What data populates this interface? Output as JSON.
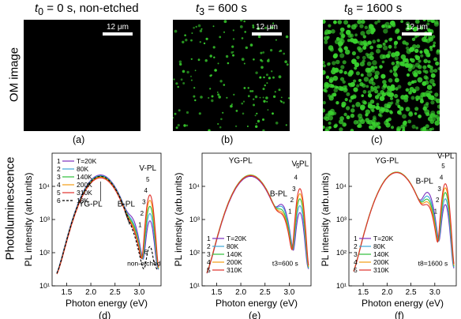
{
  "columns": [
    {
      "heading": "t0 = 0 s, non-etched",
      "sym": "t",
      "sub": "0",
      "rest": " = 0 s, non-etched",
      "scale": "12 μm",
      "panel": "(a)",
      "density": 0
    },
    {
      "heading": "t3 = 600 s",
      "sym": "t",
      "sub": "3",
      "rest": " = 600 s",
      "scale": "12 μm",
      "panel": "(b)",
      "density": 160
    },
    {
      "heading": "t8 = 1600 s",
      "sym": "t",
      "sub": "8",
      "rest": " = 1600 s",
      "scale": "12 μm",
      "panel": "(c)",
      "density": 520
    }
  ],
  "row_labels": {
    "om": "OM image",
    "pl": "Photoluminescence"
  },
  "colors": {
    "T20": "#7b2fbe",
    "T80": "#3aa7d8",
    "T140": "#2fbf3a",
    "T200": "#f39c12",
    "T310": "#e0302a",
    "T18": "#000000",
    "dots": "#39d12e"
  },
  "chart_data": [
    {
      "type": "line",
      "panel": "(d)",
      "xlabel": "Photon energy (eV)",
      "ylabel": "PL intensity (arb.units)",
      "xlim": [
        1.2,
        3.45
      ],
      "ylim": [
        10,
        100000
      ],
      "yscale": "log",
      "xticks": [
        "1.5",
        "2.0",
        "2.5",
        "3.0"
      ],
      "yticks": [
        "10¹",
        "10²",
        "10³",
        "10⁴"
      ],
      "annotations": [
        "YG-PL",
        "B-PL",
        "V-PL",
        "non-etched"
      ],
      "legend": [
        "1 — T=20K",
        "2 — 80K",
        "3 — 140K",
        "4 — 200K",
        "5 — 310K",
        "6 - - 18K"
      ],
      "series": [
        {
          "name": "T=20K",
          "color": "#7b2fbe",
          "peak": 22000,
          "b": 700,
          "v": 900
        },
        {
          "name": "80K",
          "color": "#3aa7d8",
          "peak": 21000,
          "b": 500,
          "v": 1500
        },
        {
          "name": "140K",
          "color": "#2fbf3a",
          "peak": 20000,
          "b": 400,
          "v": 2500
        },
        {
          "name": "200K",
          "color": "#f39c12",
          "peak": 19000,
          "b": 320,
          "v": 3800
        },
        {
          "name": "310K",
          "color": "#e0302a",
          "peak": 18000,
          "b": 260,
          "v": 5500
        },
        {
          "name": "18K",
          "color": "#000000",
          "peak": 20000,
          "b": 120,
          "v": 140,
          "dashed": true
        }
      ]
    },
    {
      "type": "line",
      "panel": "(e)",
      "xlabel": "Photon energy (eV)",
      "ylabel": "PL intensity (arb.units)",
      "xlim": [
        1.2,
        3.45
      ],
      "ylim": [
        10,
        100000
      ],
      "yscale": "log",
      "xticks": [
        "1.5",
        "2.0",
        "2.5",
        "3.0"
      ],
      "yticks": [
        "10¹",
        "10²",
        "10³",
        "10⁴"
      ],
      "annotations": [
        "YG-PL",
        "B-PL",
        "V-PL",
        "t3=600 s"
      ],
      "legend": [
        "1 — T=20K",
        "2 — 80K",
        "3 — 140K",
        "4 — 200K",
        "5 — 310K"
      ],
      "series": [
        {
          "name": "T=20K",
          "color": "#7b2fbe",
          "peak": 20000,
          "b": 2400,
          "v": 1600
        },
        {
          "name": "80K",
          "color": "#3aa7d8",
          "peak": 21000,
          "b": 2000,
          "v": 2600
        },
        {
          "name": "140K",
          "color": "#2fbf3a",
          "peak": 22000,
          "b": 1500,
          "v": 4200
        },
        {
          "name": "200K",
          "color": "#f39c12",
          "peak": 21500,
          "b": 1200,
          "v": 6000
        },
        {
          "name": "310K",
          "color": "#e0302a",
          "peak": 21000,
          "b": 1000,
          "v": 8500
        }
      ]
    },
    {
      "type": "line",
      "panel": "(f)",
      "xlabel": "Photon energy (eV)",
      "ylabel": "PL intensity (arb.units)",
      "xlim": [
        1.2,
        3.45
      ],
      "ylim": [
        10,
        100000
      ],
      "yscale": "log",
      "xticks": [
        "1.5",
        "2.0",
        "2.5",
        "3.0"
      ],
      "yticks": [
        "10¹",
        "10²",
        "10³",
        "10⁴"
      ],
      "annotations": [
        "YG-PL",
        "B-PL",
        "V-PL",
        "t8=1600 s"
      ],
      "legend": [
        "1 — T=20K",
        "2 — 80K",
        "3 — 140K",
        "4 — 200K",
        "5 — 310K"
      ],
      "series": [
        {
          "name": "T=20K",
          "color": "#7b2fbe",
          "peak": 26000,
          "b": 6000,
          "v": 2800
        },
        {
          "name": "80K",
          "color": "#3aa7d8",
          "peak": 26500,
          "b": 4500,
          "v": 4200
        },
        {
          "name": "140K",
          "color": "#2fbf3a",
          "peak": 27000,
          "b": 3500,
          "v": 6500
        },
        {
          "name": "200K",
          "color": "#f39c12",
          "peak": 26500,
          "b": 2800,
          "v": 9000
        },
        {
          "name": "310K",
          "color": "#e0302a",
          "peak": 26000,
          "b": 2200,
          "v": 12000
        }
      ]
    }
  ]
}
